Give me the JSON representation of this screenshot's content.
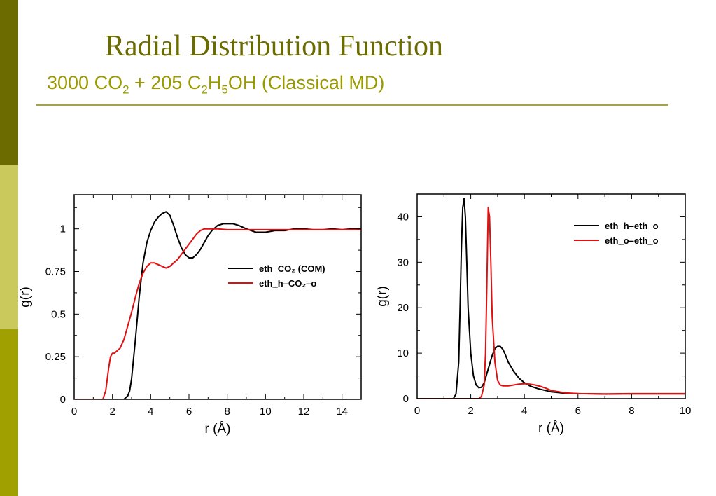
{
  "slide": {
    "title": "Radial Distribution Function",
    "subtitle_parts": {
      "a": "3000 CO",
      "b": "2",
      "c": " + 205 C",
      "d": "2",
      "e": "H",
      "f": "5",
      "g": "OH (Classical MD)"
    }
  },
  "colors": {
    "title": "#6b6b00",
    "subtitle": "#9a9a00",
    "rule": "#a7a72a",
    "bar_dark": "#6b6b00",
    "bar_light": "#c9c95c",
    "bar_olive": "#a0a000",
    "series_black": "#000000",
    "series_red": "#e01010"
  },
  "chart_data": [
    {
      "type": "line",
      "xlabel": "r (Å)",
      "ylabel": "g(r)",
      "xlim": [
        0,
        15
      ],
      "ylim": [
        0,
        1.2
      ],
      "xticks": [
        0,
        2,
        4,
        6,
        8,
        10,
        12,
        14
      ],
      "yticks": [
        0,
        0.25,
        0.5,
        0.75,
        1
      ],
      "ytick_labels": [
        "0",
        "0.25",
        "0.5",
        "0.75",
        "1"
      ],
      "legend_position": "center-right",
      "series": [
        {
          "name": "eth_CO₂ (COM)",
          "color": "#000000",
          "x": [
            0,
            2.6,
            2.8,
            2.9,
            3.0,
            3.2,
            3.4,
            3.6,
            3.8,
            4.0,
            4.2,
            4.4,
            4.6,
            4.8,
            5.0,
            5.2,
            5.4,
            5.6,
            5.8,
            6.0,
            6.2,
            6.4,
            6.6,
            6.8,
            7.0,
            7.2,
            7.5,
            7.8,
            8.0,
            8.3,
            8.6,
            9.0,
            9.5,
            10.0,
            10.5,
            11.0,
            11.5,
            12.0,
            12.5,
            13.0,
            13.5,
            14.0,
            14.5,
            15.0
          ],
          "y": [
            0,
            0,
            0.02,
            0.05,
            0.12,
            0.35,
            0.6,
            0.8,
            0.92,
            0.99,
            1.04,
            1.07,
            1.09,
            1.1,
            1.08,
            1.02,
            0.95,
            0.89,
            0.85,
            0.83,
            0.83,
            0.85,
            0.88,
            0.92,
            0.96,
            0.99,
            1.02,
            1.03,
            1.03,
            1.03,
            1.02,
            1.0,
            0.98,
            0.98,
            0.99,
            0.99,
            1.0,
            1.0,
            0.995,
            0.995,
            1.0,
            0.995,
            1.0,
            1.0
          ]
        },
        {
          "name": "eth_h–CO₂–o",
          "color": "#e01010",
          "x": [
            0,
            1.5,
            1.65,
            1.8,
            1.9,
            2.0,
            2.1,
            2.2,
            2.4,
            2.6,
            2.8,
            3.0,
            3.2,
            3.4,
            3.6,
            3.8,
            4.0,
            4.2,
            4.4,
            4.6,
            4.8,
            5.0,
            5.2,
            5.4,
            5.6,
            5.8,
            6.0,
            6.2,
            6.4,
            6.6,
            6.8,
            7.0,
            7.5,
            8.0,
            9.0,
            10.0,
            11.0,
            12.0,
            13.0,
            14.0,
            15.0
          ],
          "y": [
            0,
            0,
            0.05,
            0.18,
            0.25,
            0.27,
            0.27,
            0.28,
            0.3,
            0.35,
            0.43,
            0.51,
            0.6,
            0.68,
            0.74,
            0.78,
            0.8,
            0.8,
            0.79,
            0.78,
            0.77,
            0.78,
            0.8,
            0.82,
            0.85,
            0.88,
            0.91,
            0.94,
            0.97,
            0.99,
            1.0,
            1.0,
            1.0,
            0.995,
            0.995,
            0.995,
            0.995,
            0.995,
            0.995,
            0.995,
            0.995
          ]
        }
      ]
    },
    {
      "type": "line",
      "xlabel": "r (Å)",
      "ylabel": "g(r)",
      "xlim": [
        0,
        10
      ],
      "ylim": [
        0,
        45
      ],
      "xticks": [
        0,
        2,
        4,
        6,
        8,
        10
      ],
      "yticks": [
        0,
        10,
        20,
        30,
        40
      ],
      "ytick_labels": [
        "0",
        "10",
        "20",
        "30",
        "40"
      ],
      "legend_position": "top-right",
      "series": [
        {
          "name": "eth_h–eth_o",
          "color": "#000000",
          "x": [
            0,
            1.35,
            1.45,
            1.55,
            1.6,
            1.65,
            1.7,
            1.75,
            1.8,
            1.85,
            1.9,
            2.0,
            2.1,
            2.2,
            2.3,
            2.4,
            2.5,
            2.6,
            2.7,
            2.8,
            2.9,
            3.0,
            3.1,
            3.2,
            3.3,
            3.4,
            3.6,
            3.8,
            4.0,
            4.2,
            4.5,
            5.0,
            5.5,
            6.0,
            7.0,
            8.0,
            9.0,
            10.0
          ],
          "y": [
            0,
            0,
            1,
            8,
            20,
            33,
            42,
            44,
            40,
            30,
            20,
            10,
            5,
            3,
            2.4,
            2.5,
            3.5,
            5.5,
            7.5,
            9.5,
            11,
            11.5,
            11.5,
            10.8,
            9.5,
            8,
            6,
            4.5,
            3.5,
            2.8,
            2.2,
            1.5,
            1.2,
            1.1,
            1.0,
            1.05,
            1.05,
            1.05
          ]
        },
        {
          "name": "eth_o–eth_o",
          "color": "#e01010",
          "x": [
            0,
            2.3,
            2.4,
            2.5,
            2.55,
            2.6,
            2.65,
            2.7,
            2.75,
            2.8,
            2.9,
            3.0,
            3.1,
            3.2,
            3.4,
            3.6,
            3.8,
            4.0,
            4.2,
            4.4,
            4.6,
            4.8,
            5.0,
            5.5,
            6.0,
            7.0,
            8.0,
            9.0,
            10.0
          ],
          "y": [
            0,
            0,
            0.5,
            3,
            10,
            25,
            42,
            40,
            30,
            18,
            8,
            4,
            3,
            2.8,
            2.8,
            3.0,
            3.2,
            3.3,
            3.2,
            3.0,
            2.7,
            2.3,
            1.8,
            1.3,
            1.1,
            1.05,
            1.1,
            1.1,
            1.1
          ]
        }
      ]
    }
  ]
}
